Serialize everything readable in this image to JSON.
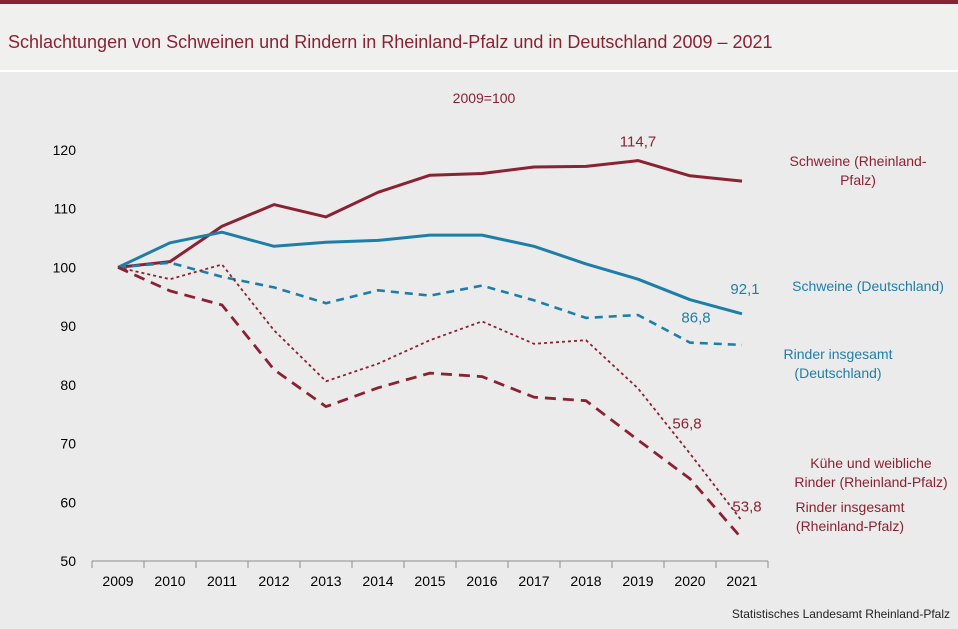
{
  "header": {
    "title": "Schlachtungen von Schweinen und Rindern in Rheinland-Pfalz und in Deutschland 2009 – 2021"
  },
  "footer": {
    "source": "Statistisches Landesamt Rheinland-Pfalz"
  },
  "chart_data": {
    "type": "line",
    "subtitle": "2009=100",
    "categories": [
      "2009",
      "2010",
      "2011",
      "2012",
      "2013",
      "2014",
      "2015",
      "2016",
      "2017",
      "2018",
      "2019",
      "2020",
      "2021"
    ],
    "ylim": [
      50,
      120
    ],
    "yticks": [
      "50",
      "60",
      "70",
      "80",
      "90",
      "100",
      "110",
      "120"
    ],
    "series": [
      {
        "name": "Schweine (Rheinland-Pfalz)",
        "legend_lines": [
          "Schweine (Rheinland-",
          "Pfalz)"
        ],
        "color": "#8b2234",
        "style": "solid",
        "values": [
          100,
          101,
          107,
          110.7,
          108.6,
          112.8,
          115.7,
          116,
          117.1,
          117.2,
          118.2,
          115.6,
          114.7
        ],
        "end_label": "114,7",
        "label_at": 10
      },
      {
        "name": "Schweine (Deutschland)",
        "legend_lines": [
          "Schweine (Deutschland)"
        ],
        "color": "#1f7ea8",
        "style": "solid",
        "values": [
          100,
          104.2,
          106,
          103.6,
          104.3,
          104.6,
          105.5,
          105.5,
          103.6,
          100.6,
          98,
          94.5,
          92.1
        ],
        "end_label": "92,1",
        "label_at": 12
      },
      {
        "name": "Rinder insgesamt (Deutschland)",
        "legend_lines": [
          "Rinder insgesamt",
          "(Deutschland)"
        ],
        "color": "#1f7ea8",
        "style": "dashed",
        "values": [
          100,
          100.8,
          98.4,
          96.6,
          93.9,
          96.1,
          95.2,
          96.9,
          94.4,
          91.4,
          91.9,
          87.2,
          86.8
        ],
        "end_label": "86,8",
        "label_at": 11
      },
      {
        "name": "Kühe und weibliche Rinder (Rheinland-Pfalz)",
        "legend_lines": [
          "Kühe und weibliche",
          "Rinder (Rheinland-Pfalz)"
        ],
        "color": "#8b2234",
        "style": "dotted",
        "values": [
          100,
          98,
          100.5,
          89.3,
          80.6,
          83.6,
          87.6,
          90.8,
          87,
          87.6,
          79.4,
          68.3,
          56.8
        ],
        "end_label": "56,8",
        "label_at": 11
      },
      {
        "name": "Rinder insgesamt (Rheinland-Pfalz)",
        "legend_lines": [
          "Rinder insgesamt",
          "(Rheinland-Pfalz)"
        ],
        "color": "#8b2234",
        "style": "longdash",
        "values": [
          100,
          96,
          93.6,
          82.6,
          76.3,
          79.5,
          82,
          81.4,
          77.9,
          77.3,
          70.6,
          64,
          53.8
        ],
        "end_label": "53,8",
        "label_at": 12
      }
    ]
  }
}
